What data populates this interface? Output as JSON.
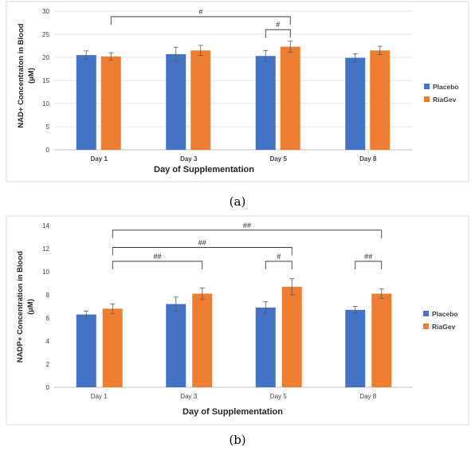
{
  "colors": {
    "placebo": "#4472C4",
    "riagev": "#ED7D31"
  },
  "panel_labels": {
    "a": "(a)",
    "b": "(b)"
  },
  "chart_data": [
    {
      "type": "bar",
      "panel": "(a)",
      "xlabel": "Day of Supplementation",
      "ylabel_line1": "NAD+ Concentraton in Blood",
      "ylabel_line2": "(µM)",
      "categories": [
        "Day 1",
        "Day 3",
        "Day 5",
        "Day 8"
      ],
      "ylim": [
        0,
        30
      ],
      "yticks": [
        0,
        5,
        10,
        15,
        20,
        25,
        30
      ],
      "grid": true,
      "legend": "right",
      "series": [
        {
          "name": "Placebo",
          "color": "#4472C4",
          "values": [
            20.5,
            20.7,
            20.3,
            19.9
          ],
          "errors": [
            0.9,
            1.5,
            1.2,
            0.9
          ]
        },
        {
          "name": "RiaGev",
          "color": "#ED7D31",
          "values": [
            20.2,
            21.5,
            22.3,
            21.5
          ],
          "errors": [
            0.8,
            1.1,
            1.2,
            0.9
          ]
        }
      ],
      "annotations": [
        {
          "label": "#",
          "from": {
            "cat": 0,
            "series": 1
          },
          "to": {
            "cat": 2,
            "series": 1
          },
          "level": 28.8
        },
        {
          "label": "#",
          "from": {
            "cat": 2,
            "series": 0
          },
          "to": {
            "cat": 2,
            "series": 1
          },
          "level": 26.0
        }
      ]
    },
    {
      "type": "bar",
      "panel": "(b)",
      "xlabel": "Day of Supplementation",
      "ylabel_line1": "NADP+ Concentration in Blood",
      "ylabel_line2": "(µM)",
      "categories": [
        "Day 1",
        "Day 3",
        "Day 5",
        "Day 8"
      ],
      "ylim": [
        0,
        14
      ],
      "yticks": [
        0,
        2,
        4,
        6,
        8,
        10,
        12,
        14
      ],
      "grid": false,
      "legend": "right",
      "series": [
        {
          "name": "Placebo",
          "color": "#4472C4",
          "values": [
            6.3,
            7.2,
            6.9,
            6.7
          ],
          "errors": [
            0.3,
            0.6,
            0.5,
            0.3
          ]
        },
        {
          "name": "RiaGev",
          "color": "#ED7D31",
          "values": [
            6.8,
            8.1,
            8.7,
            8.1
          ],
          "errors": [
            0.4,
            0.5,
            0.7,
            0.4
          ]
        }
      ],
      "annotations": [
        {
          "label": "##",
          "from": {
            "cat": 0,
            "series": 1
          },
          "to": {
            "cat": 3,
            "series": 1
          },
          "level": 13.6
        },
        {
          "label": "##",
          "from": {
            "cat": 0,
            "series": 1
          },
          "to": {
            "cat": 2,
            "series": 1
          },
          "level": 12.1
        },
        {
          "label": "##",
          "from": {
            "cat": 0,
            "series": 1
          },
          "to": {
            "cat": 1,
            "series": 1
          },
          "level": 10.9
        },
        {
          "label": "#",
          "from": {
            "cat": 2,
            "series": 0
          },
          "to": {
            "cat": 2,
            "series": 1
          },
          "level": 10.9
        },
        {
          "label": "##",
          "from": {
            "cat": 3,
            "series": 0
          },
          "to": {
            "cat": 3,
            "series": 1
          },
          "level": 10.9
        }
      ]
    }
  ]
}
